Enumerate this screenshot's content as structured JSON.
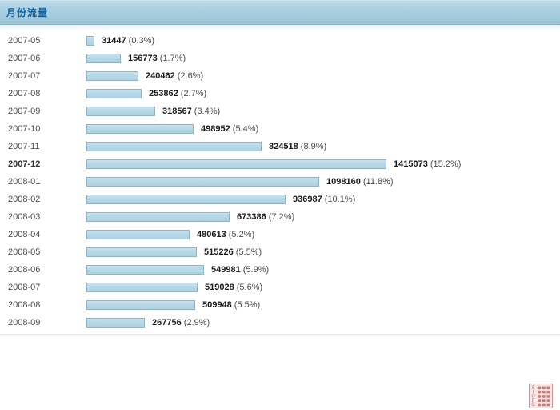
{
  "header": {
    "title": "月份流量"
  },
  "chart_data": {
    "type": "bar",
    "orientation": "horizontal",
    "title": "月份流量",
    "categories": [
      "2007-05",
      "2007-06",
      "2007-07",
      "2007-08",
      "2007-09",
      "2007-10",
      "2007-11",
      "2007-12",
      "2008-01",
      "2008-02",
      "2008-03",
      "2008-04",
      "2008-05",
      "2008-06",
      "2008-07",
      "2008-08",
      "2008-09"
    ],
    "values": [
      31447,
      156773,
      240462,
      253862,
      318567,
      498952,
      824518,
      1415073,
      1098160,
      936987,
      673386,
      480613,
      515226,
      549981,
      519028,
      509948,
      267756
    ],
    "percents": [
      0.3,
      1.7,
      2.6,
      2.7,
      3.4,
      5.4,
      8.9,
      15.2,
      11.8,
      10.1,
      7.2,
      5.2,
      5.5,
      5.9,
      5.6,
      5.5,
      2.9
    ],
    "value_label_format": "value (percent%)",
    "highlighted_category": "2007-12",
    "xlim": [
      0,
      1415073
    ],
    "grid": false,
    "legend": false,
    "bar_color": "#b5d8e7",
    "bar_border_color": "#8fb4c6"
  },
  "seal": {
    "icon": "red-seal-stamp",
    "letters": "SIUFC",
    "background": "#f8e7e6",
    "border_color": "#d98f8d",
    "ink_color": "#c96562"
  }
}
